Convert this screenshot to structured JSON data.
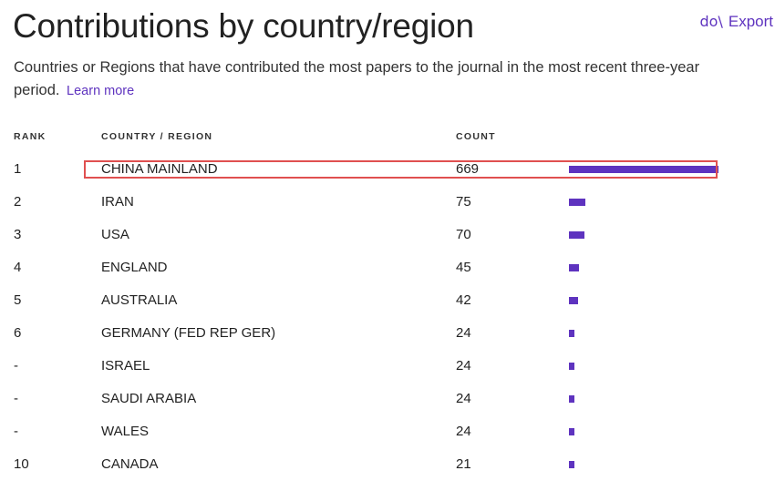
{
  "header": {
    "title": "Contributions by country/region",
    "export_icon_text": "do\\",
    "export_label": "Export",
    "description": "Countries or Regions that have contributed the most papers to the journal in the most recent three-year period.",
    "learn_more": "Learn more"
  },
  "table": {
    "columns": [
      "RANK",
      "COUNTRY / REGION",
      "COUNT"
    ],
    "max_count": 669,
    "bar_color": "#5e33bf",
    "rows": [
      {
        "rank": "1",
        "country": "CHINA MAINLAND",
        "count": "669",
        "value": 669
      },
      {
        "rank": "2",
        "country": "IRAN",
        "count": "75",
        "value": 75
      },
      {
        "rank": "3",
        "country": "USA",
        "count": "70",
        "value": 70
      },
      {
        "rank": "4",
        "country": "ENGLAND",
        "count": "45",
        "value": 45
      },
      {
        "rank": "5",
        "country": "AUSTRALIA",
        "count": "42",
        "value": 42
      },
      {
        "rank": "6",
        "country": "GERMANY (FED REP GER)",
        "count": "24",
        "value": 24
      },
      {
        "rank": "-",
        "country": "ISRAEL",
        "count": "24",
        "value": 24
      },
      {
        "rank": "-",
        "country": "SAUDI ARABIA",
        "count": "24",
        "value": 24
      },
      {
        "rank": "-",
        "country": "WALES",
        "count": "24",
        "value": 24
      },
      {
        "rank": "10",
        "country": "CANADA",
        "count": "21",
        "value": 21
      }
    ]
  },
  "highlight_color": "#e05050"
}
